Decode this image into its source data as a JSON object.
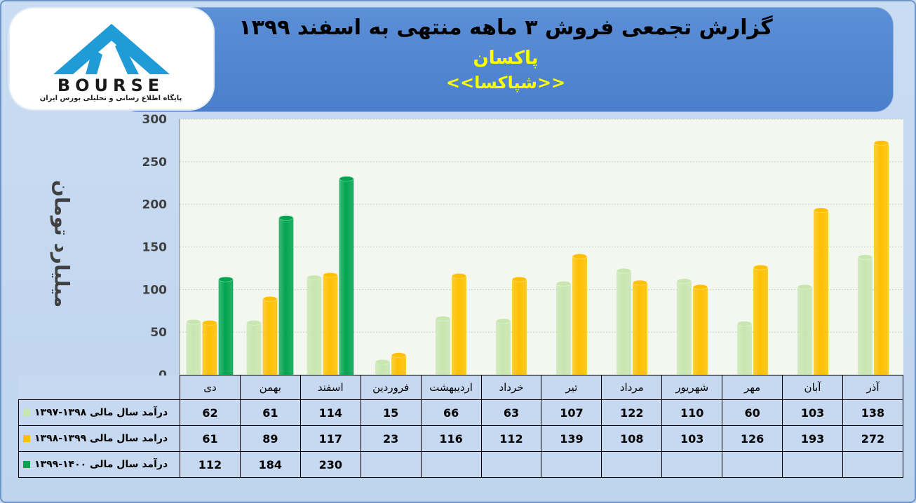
{
  "banner": {
    "title": "گزارش تجمعی فروش ۳ ماهه منتهی به اسفند ۱۳۹۹",
    "company": "پاکسان",
    "symbol": "<<شپاکسا>>"
  },
  "logo": {
    "text": "BOURSE",
    "tagline": "پایگاه اطلاع رسانی و تحلیلی بورس ایران"
  },
  "colors": {
    "series_1397_98": "#c8e6b0",
    "series_1398_99": "#ffc000",
    "series_1399_1400": "#00a550",
    "plot_bg": "#f4f7f0",
    "grid": "#c8d0c0"
  },
  "chart_data": {
    "type": "bar",
    "ylabel": "میلیارد تومان",
    "ylim": [
      0,
      300
    ],
    "yticks": [
      0,
      50,
      100,
      150,
      200,
      250,
      300
    ],
    "grid": true,
    "categories": [
      "دی",
      "بهمن",
      "اسفند",
      "فروردین",
      "اردیبهشت",
      "خرداد",
      "تیر",
      "مرداد",
      "شهریور",
      "مهر",
      "آبان",
      "آذر"
    ],
    "series": [
      {
        "name": "درآمد سال مالی ۱۳۹۸-۱۳۹۷",
        "color": "#c8e6b0",
        "values": [
          62,
          61,
          114,
          15,
          66,
          63,
          107,
          122,
          110,
          60,
          103,
          138
        ]
      },
      {
        "name": "درامد سال مالی ۱۳۹۹-۱۳۹۸",
        "color": "#ffc000",
        "values": [
          61,
          89,
          117,
          23,
          116,
          112,
          139,
          108,
          103,
          126,
          193,
          272
        ]
      },
      {
        "name": "درآمد سال مالی ۱۴۰۰-۱۳۹۹",
        "color": "#00a550",
        "values": [
          112,
          184,
          230,
          null,
          null,
          null,
          null,
          null,
          null,
          null,
          null,
          null
        ]
      }
    ]
  },
  "table": {
    "rows": [
      {
        "label": "درآمد سال مالی ۱۳۹۸-۱۳۹۷",
        "values": [
          "62",
          "61",
          "114",
          "15",
          "66",
          "63",
          "107",
          "122",
          "110",
          "60",
          "103",
          "138"
        ]
      },
      {
        "label": "درامد سال مالی ۱۳۹۹-۱۳۹۸",
        "values": [
          "61",
          "89",
          "117",
          "23",
          "116",
          "112",
          "139",
          "108",
          "103",
          "126",
          "193",
          "272"
        ]
      },
      {
        "label": "درآمد سال مالی ۱۴۰۰-۱۳۹۹",
        "values": [
          "112",
          "184",
          "230",
          "",
          "",
          "",
          "",
          "",
          "",
          "",
          "",
          ""
        ]
      }
    ]
  }
}
